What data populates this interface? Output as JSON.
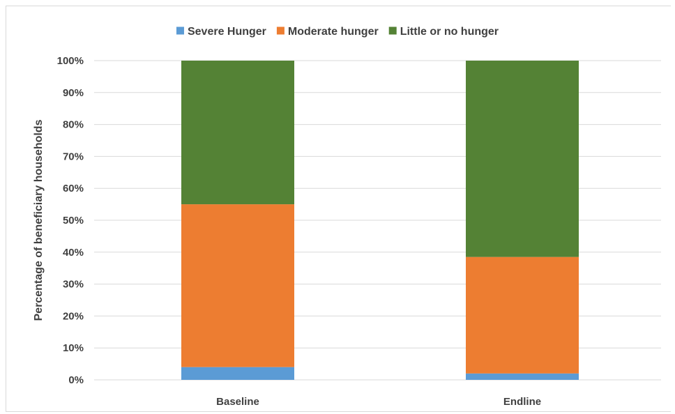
{
  "chart_data": {
    "type": "bar",
    "stacked": true,
    "categories": [
      "Baseline",
      "Endline"
    ],
    "series": [
      {
        "name": "Severe Hunger",
        "values": [
          4,
          2
        ],
        "color": "#5b9bd5"
      },
      {
        "name": "Moderate hunger",
        "values": [
          51,
          36.5
        ],
        "color": "#ed7d31"
      },
      {
        "name": "Little or no hunger",
        "values": [
          45,
          61.5
        ],
        "color": "#548235"
      }
    ],
    "ylabel": "Percentage of beneficiary households",
    "xlabel": "",
    "ylim": [
      0,
      100
    ],
    "y_ticks": [
      "0%",
      "10%",
      "20%",
      "30%",
      "40%",
      "50%",
      "60%",
      "70%",
      "80%",
      "90%",
      "100%"
    ],
    "legend_position": "top",
    "grid": true,
    "gridline_color": "#d9d9d9"
  }
}
